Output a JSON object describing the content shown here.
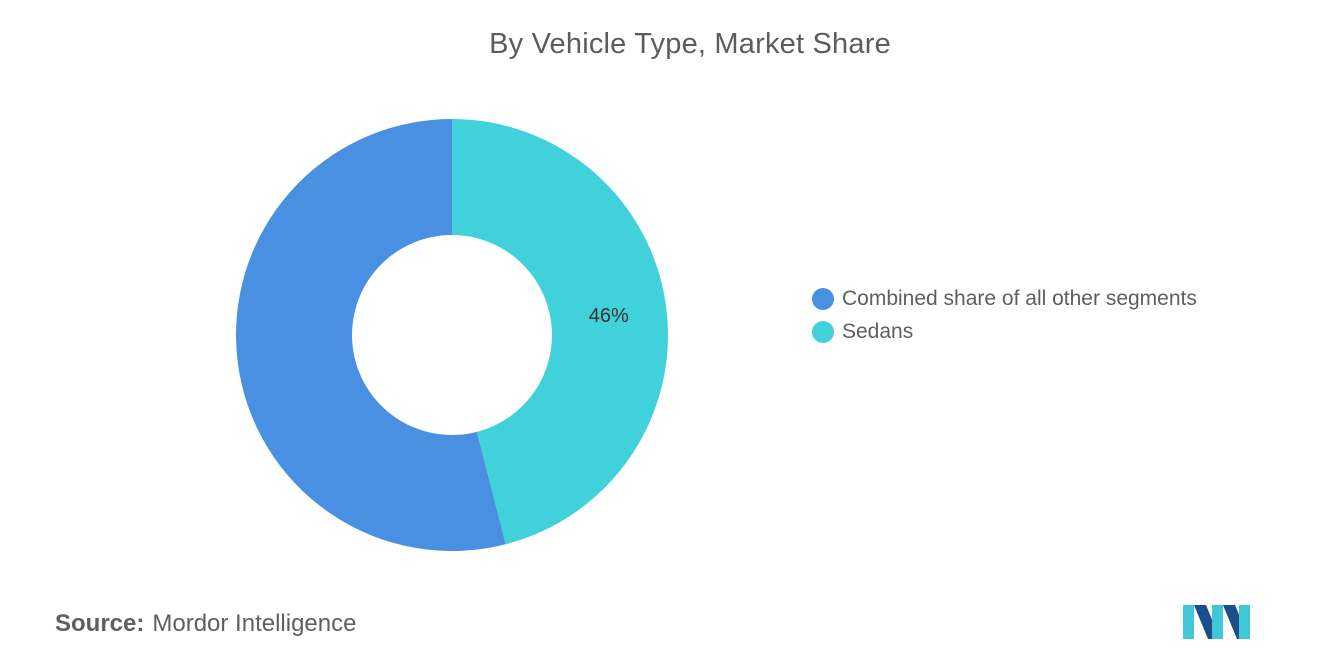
{
  "chart_data": {
    "type": "pie",
    "title": "By Vehicle Type, Market Share",
    "donut": true,
    "slices": [
      {
        "label": "Sedans",
        "value": 46,
        "color": "#40d1db",
        "data_label": "46%"
      },
      {
        "label": "Combined share of all other segments",
        "value": 54,
        "color": "#4a90e2",
        "data_label": ""
      }
    ],
    "legend": {
      "placement": "right",
      "entries": [
        {
          "label": "Combined share of all other segments",
          "color": "#4a90e2"
        },
        {
          "label": "Sedans",
          "color": "#40d1db"
        }
      ]
    }
  },
  "source": {
    "label": "Source:",
    "value": "Mordor Intelligence"
  },
  "logo": {
    "icon": "mordor-intelligence-logo-icon",
    "colors": [
      "#1a4f8c",
      "#40c8d8"
    ]
  }
}
